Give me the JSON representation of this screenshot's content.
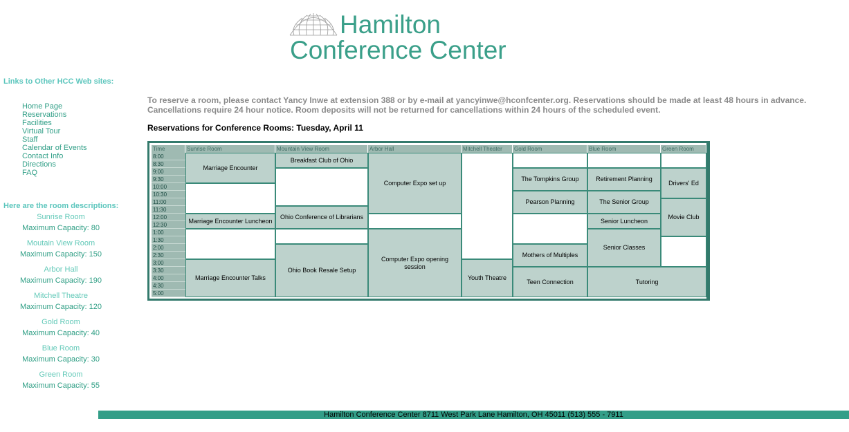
{
  "logo": {
    "line1": "Hamilton",
    "line2": "Conference Center",
    "icon": "globe-icon",
    "color": "#3a9f89"
  },
  "sidebar": {
    "links_heading": "Links to Other HCC Web sites:",
    "links": [
      "Home Page",
      "Reservations",
      "Facilities",
      "Virtual Tour",
      "Staff",
      "Calendar of Events",
      "Contact Info",
      "Directions",
      "FAQ"
    ],
    "rooms_heading": "Here are the room descriptions:",
    "rooms": [
      {
        "name": "Sunrise Room",
        "capacity": "Maximum Capacity: 80"
      },
      {
        "name": "Moutain View Room",
        "capacity": "Maximum Capacity: 150"
      },
      {
        "name": "Arbor Hall",
        "capacity": "Maximum Capacity: 190"
      },
      {
        "name": "Mitchell Theatre",
        "capacity": "Maximum Capacity: 120"
      },
      {
        "name": "Gold Room",
        "capacity": "Maximum Capacity: 40"
      },
      {
        "name": "Blue Room",
        "capacity": "Maximum Capacity: 30"
      },
      {
        "name": "Green Room",
        "capacity": "Maximum Capacity: 55"
      }
    ]
  },
  "notice": "To reserve a room, please contact Yancy Inwe at extension 388 or by e-mail at yancyinwe@hconfcenter.org. Reservations should be made at least 48 hours in advance. Cancellations require 24 hour notice. Room deposits will not be returned for cancellations within 24 hours of the scheduled event.",
  "reservations_title": "Reservations for Conference Rooms: Tuesday, April 11",
  "schedule": {
    "time_header": "Time",
    "columns": [
      "Sunrise Room",
      "Mountain View Room",
      "Arbor Hall",
      "Mitchell Theater",
      "Gold Room",
      "Blue Room",
      "Green Room"
    ],
    "times": [
      "8:00",
      "8:30",
      "9:00",
      "9:30",
      "10:00",
      "10:30",
      "11:00",
      "11:30",
      "12:00",
      "12:30",
      "1:00",
      "1:30",
      "2:00",
      "2:30",
      "3:00",
      "3:30",
      "4:00",
      "4:30",
      "5:00"
    ],
    "events": [
      {
        "col": 0,
        "start": 0,
        "span": 4,
        "label": "Marriage Encounter"
      },
      {
        "col": 0,
        "start": 4,
        "span": 4,
        "label": ""
      },
      {
        "col": 0,
        "start": 8,
        "span": 2,
        "label": "Marriage Encounter Luncheon"
      },
      {
        "col": 0,
        "start": 10,
        "span": 4,
        "label": ""
      },
      {
        "col": 0,
        "start": 14,
        "span": 5,
        "label": "Marriage Encounter Talks"
      },
      {
        "col": 1,
        "start": 0,
        "span": 2,
        "label": "Breakfast Club of Ohio"
      },
      {
        "col": 1,
        "start": 2,
        "span": 5,
        "label": ""
      },
      {
        "col": 1,
        "start": 7,
        "span": 3,
        "label": "Ohio Conference of Librarians"
      },
      {
        "col": 1,
        "start": 10,
        "span": 2,
        "label": ""
      },
      {
        "col": 1,
        "start": 12,
        "span": 7,
        "label": "Ohio Book Resale Setup"
      },
      {
        "col": 2,
        "start": 0,
        "span": 8,
        "label": "Computer Expo set up"
      },
      {
        "col": 2,
        "start": 8,
        "span": 2,
        "label": ""
      },
      {
        "col": 2,
        "start": 10,
        "span": 9,
        "label": "Computer Expo opening session"
      },
      {
        "col": 3,
        "start": 0,
        "span": 14,
        "label": ""
      },
      {
        "col": 3,
        "start": 14,
        "span": 5,
        "label": "Youth Theatre"
      },
      {
        "col": 4,
        "start": 0,
        "span": 2,
        "label": ""
      },
      {
        "col": 4,
        "start": 2,
        "span": 3,
        "label": "The Tompkins Group"
      },
      {
        "col": 4,
        "start": 5,
        "span": 3,
        "label": "Pearson Planning"
      },
      {
        "col": 4,
        "start": 8,
        "span": 4,
        "label": ""
      },
      {
        "col": 4,
        "start": 12,
        "span": 3,
        "label": "Mothers of Multiples"
      },
      {
        "col": 4,
        "start": 15,
        "span": 4,
        "label": "Teen Connection"
      },
      {
        "col": 5,
        "start": 0,
        "span": 2,
        "label": ""
      },
      {
        "col": 5,
        "start": 2,
        "span": 3,
        "label": "Retirement Planning"
      },
      {
        "col": 5,
        "start": 5,
        "span": 3,
        "label": "The Senior Group"
      },
      {
        "col": 5,
        "start": 8,
        "span": 2,
        "label": "Senior Luncheon"
      },
      {
        "col": 5,
        "start": 10,
        "span": 5,
        "label": "Senior Classes"
      },
      {
        "col": 6,
        "start": 0,
        "span": 2,
        "label": ""
      },
      {
        "col": 6,
        "start": 2,
        "span": 4,
        "label": "Drivers' Ed"
      },
      {
        "col": 6,
        "start": 6,
        "span": 5,
        "label": "Movie Club"
      },
      {
        "col": 6,
        "start": 11,
        "span": 4,
        "label": ""
      },
      {
        "col": 5,
        "start": 15,
        "span": 4,
        "label": "Tutoring",
        "colspan": 2
      }
    ]
  },
  "footer": "Hamilton Conference Center 8711 West Park Lane Hamilton, OH 45011 (513) 555 - 7911"
}
